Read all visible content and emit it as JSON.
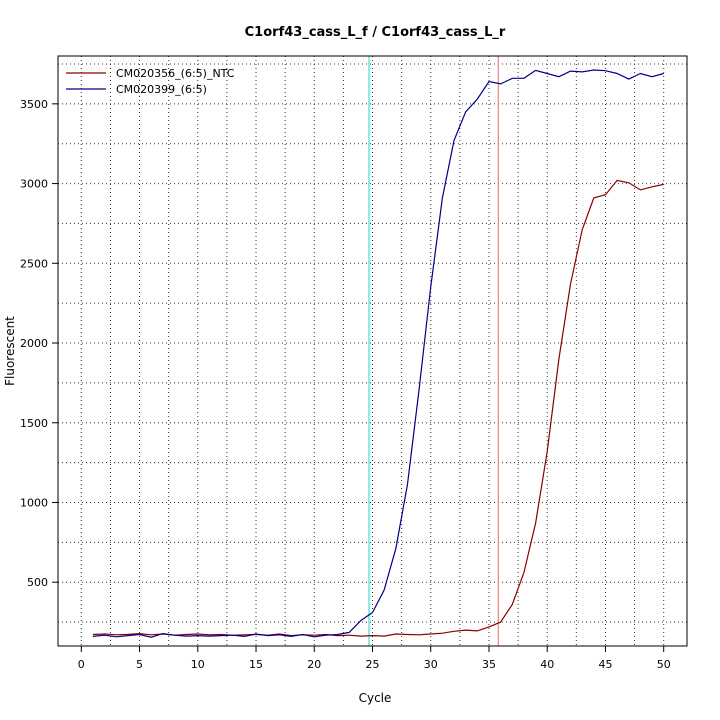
{
  "chart_data": {
    "type": "line",
    "title": "C1orf43_cass_L_f / C1orf43_cass_L_r",
    "xlabel": "Cycle",
    "ylabel": "Fluorescent",
    "xlim": [
      -2,
      52
    ],
    "ylim": [
      100,
      3800
    ],
    "xticks": [
      0,
      5,
      10,
      15,
      20,
      25,
      30,
      35,
      40,
      45,
      50
    ],
    "yticks": [
      500,
      1000,
      1500,
      2000,
      2500,
      3000,
      3500
    ],
    "grid": true,
    "grid_style": "dotted",
    "legend_position": "top-left",
    "vertical_lines": [
      {
        "x": 24.7,
        "color": "#40e0d0"
      },
      {
        "x": 35.8,
        "color": "#f08080"
      }
    ],
    "series": [
      {
        "name": "CM020356_(6:5)_NTC",
        "color": "#8b0000",
        "x": [
          1,
          2,
          3,
          4,
          5,
          6,
          7,
          8,
          9,
          10,
          11,
          12,
          13,
          14,
          15,
          16,
          17,
          18,
          19,
          20,
          21,
          22,
          23,
          24,
          25,
          26,
          27,
          28,
          29,
          30,
          31,
          32,
          33,
          34,
          35,
          36,
          37,
          38,
          39,
          40,
          41,
          42,
          43,
          44,
          45,
          46,
          47,
          48,
          49,
          50
        ],
        "values": [
          172,
          175,
          170,
          173,
          178,
          170,
          175,
          168,
          172,
          175,
          170,
          172,
          168,
          170,
          172,
          168,
          175,
          165,
          170,
          168,
          172,
          165,
          168,
          162,
          165,
          162,
          175,
          172,
          170,
          175,
          180,
          192,
          200,
          195,
          220,
          250,
          360,
          560,
          870,
          1320,
          1900,
          2370,
          2710,
          2910,
          2930,
          3020,
          3005,
          2960,
          2980,
          2995
        ]
      },
      {
        "name": "CM020399_(6:5)",
        "color": "#00008b",
        "x": [
          1,
          2,
          3,
          4,
          5,
          6,
          7,
          8,
          9,
          10,
          11,
          12,
          13,
          14,
          15,
          16,
          17,
          18,
          19,
          20,
          21,
          22,
          23,
          24,
          25,
          26,
          27,
          28,
          29,
          30,
          31,
          32,
          33,
          34,
          35,
          36,
          37,
          38,
          39,
          40,
          41,
          42,
          43,
          44,
          45,
          46,
          47,
          48,
          49,
          50
        ],
        "values": [
          160,
          168,
          158,
          165,
          172,
          155,
          178,
          168,
          162,
          165,
          162,
          165,
          168,
          160,
          175,
          165,
          170,
          160,
          172,
          158,
          168,
          172,
          185,
          260,
          310,
          450,
          710,
          1110,
          1710,
          2350,
          2910,
          3270,
          3450,
          3530,
          3640,
          3625,
          3660,
          3660,
          3710,
          3690,
          3670,
          3705,
          3700,
          3712,
          3708,
          3690,
          3655,
          3690,
          3670,
          3690
        ]
      }
    ]
  }
}
